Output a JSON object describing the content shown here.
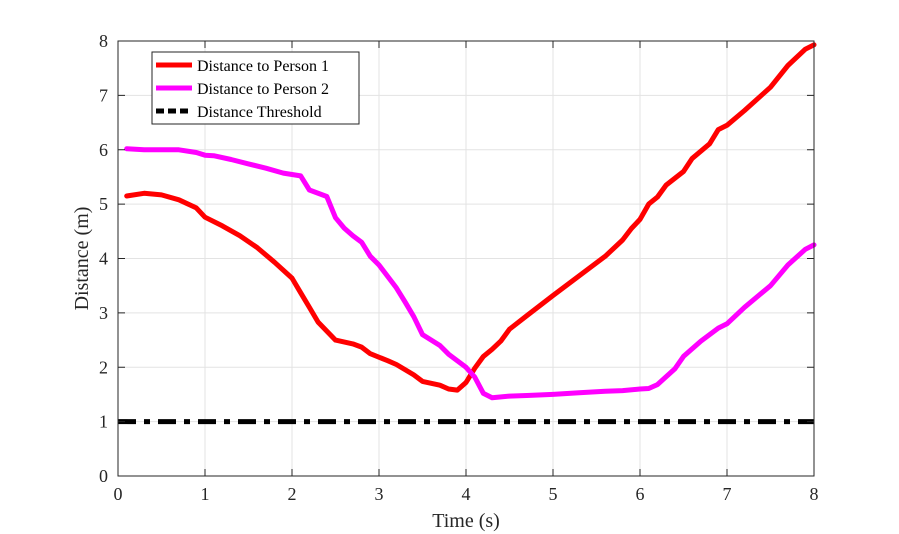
{
  "chart_data": {
    "type": "line",
    "title": "",
    "xlabel": "Time (s)",
    "ylabel": "Distance (m)",
    "xlim": [
      0,
      8
    ],
    "ylim": [
      0,
      8
    ],
    "xticks": [
      0,
      1,
      2,
      3,
      4,
      5,
      6,
      7,
      8
    ],
    "yticks": [
      0,
      1,
      2,
      3,
      4,
      5,
      6,
      7,
      8
    ],
    "grid": true,
    "legend_position": "top-left",
    "series": [
      {
        "name": "Distance to Person 1",
        "color": "#ff0000",
        "style": "solid",
        "points": [
          [
            0.1,
            5.15
          ],
          [
            0.3,
            5.2
          ],
          [
            0.5,
            5.17
          ],
          [
            0.7,
            5.08
          ],
          [
            0.9,
            4.93
          ],
          [
            1.0,
            4.76
          ],
          [
            1.2,
            4.6
          ],
          [
            1.4,
            4.42
          ],
          [
            1.6,
            4.2
          ],
          [
            1.8,
            3.93
          ],
          [
            2.0,
            3.64
          ],
          [
            2.1,
            3.37
          ],
          [
            2.2,
            3.1
          ],
          [
            2.3,
            2.83
          ],
          [
            2.5,
            2.5
          ],
          [
            2.7,
            2.43
          ],
          [
            2.8,
            2.37
          ],
          [
            2.9,
            2.25
          ],
          [
            3.1,
            2.12
          ],
          [
            3.2,
            2.05
          ],
          [
            3.4,
            1.86
          ],
          [
            3.5,
            1.74
          ],
          [
            3.7,
            1.67
          ],
          [
            3.8,
            1.6
          ],
          [
            3.9,
            1.58
          ],
          [
            4.0,
            1.72
          ],
          [
            4.1,
            1.98
          ],
          [
            4.2,
            2.2
          ],
          [
            4.3,
            2.33
          ],
          [
            4.4,
            2.48
          ],
          [
            4.5,
            2.7
          ],
          [
            4.7,
            2.95
          ],
          [
            5.0,
            3.32
          ],
          [
            5.3,
            3.68
          ],
          [
            5.6,
            4.04
          ],
          [
            5.8,
            4.34
          ],
          [
            5.9,
            4.55
          ],
          [
            6.0,
            4.72
          ],
          [
            6.1,
            5.0
          ],
          [
            6.2,
            5.13
          ],
          [
            6.3,
            5.35
          ],
          [
            6.5,
            5.6
          ],
          [
            6.6,
            5.84
          ],
          [
            6.8,
            6.11
          ],
          [
            6.9,
            6.37
          ],
          [
            7.0,
            6.45
          ],
          [
            7.2,
            6.72
          ],
          [
            7.5,
            7.15
          ],
          [
            7.7,
            7.55
          ],
          [
            7.9,
            7.85
          ],
          [
            8.0,
            7.93
          ]
        ]
      },
      {
        "name": "Distance to Person 2",
        "color": "#ff00ff",
        "style": "solid",
        "points": [
          [
            0.1,
            6.02
          ],
          [
            0.3,
            6.0
          ],
          [
            0.7,
            6.0
          ],
          [
            0.9,
            5.95
          ],
          [
            1.0,
            5.9
          ],
          [
            1.1,
            5.89
          ],
          [
            1.3,
            5.82
          ],
          [
            1.5,
            5.74
          ],
          [
            1.7,
            5.66
          ],
          [
            1.9,
            5.57
          ],
          [
            2.1,
            5.52
          ],
          [
            2.2,
            5.26
          ],
          [
            2.4,
            5.14
          ],
          [
            2.5,
            4.75
          ],
          [
            2.6,
            4.56
          ],
          [
            2.7,
            4.42
          ],
          [
            2.8,
            4.3
          ],
          [
            2.9,
            4.04
          ],
          [
            3.0,
            3.88
          ],
          [
            3.2,
            3.46
          ],
          [
            3.3,
            3.2
          ],
          [
            3.4,
            2.93
          ],
          [
            3.5,
            2.6
          ],
          [
            3.7,
            2.4
          ],
          [
            3.8,
            2.24
          ],
          [
            4.0,
            2.0
          ],
          [
            4.1,
            1.82
          ],
          [
            4.2,
            1.52
          ],
          [
            4.3,
            1.44
          ],
          [
            4.5,
            1.47
          ],
          [
            4.7,
            1.48
          ],
          [
            5.0,
            1.5
          ],
          [
            5.3,
            1.53
          ],
          [
            5.6,
            1.56
          ],
          [
            5.8,
            1.57
          ],
          [
            6.0,
            1.6
          ],
          [
            6.1,
            1.61
          ],
          [
            6.2,
            1.68
          ],
          [
            6.4,
            1.97
          ],
          [
            6.5,
            2.2
          ],
          [
            6.7,
            2.48
          ],
          [
            6.9,
            2.72
          ],
          [
            7.0,
            2.8
          ],
          [
            7.2,
            3.1
          ],
          [
            7.5,
            3.5
          ],
          [
            7.7,
            3.88
          ],
          [
            7.9,
            4.17
          ],
          [
            8.0,
            4.25
          ]
        ]
      },
      {
        "name": "Distance Threshold",
        "color": "#000000",
        "style": "dashdot",
        "points": [
          [
            0.0,
            1.0
          ],
          [
            8.0,
            1.0
          ]
        ]
      }
    ]
  }
}
